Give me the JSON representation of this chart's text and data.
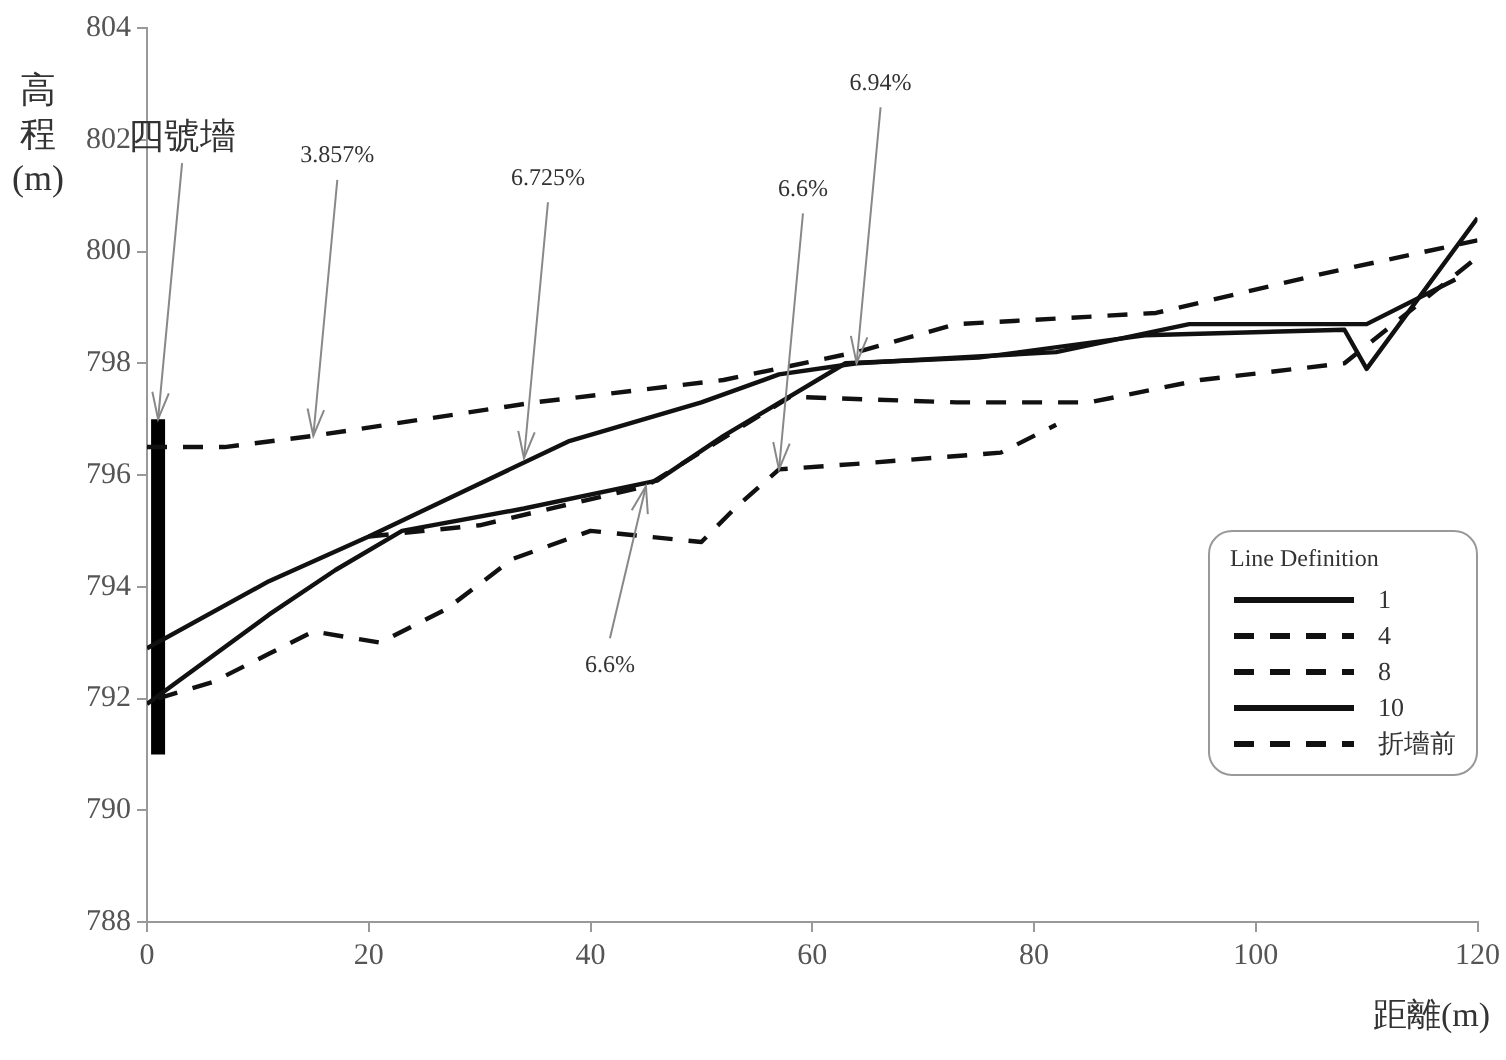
{
  "chart_data": {
    "type": "line",
    "xlabel": "距離(m)",
    "ylabel": "高程(m)",
    "legend_title": "Line Definition",
    "legend": "bottom right",
    "grid": false,
    "marker": "none",
    "xlim": [
      0,
      120
    ],
    "xticks": [
      0,
      20,
      40,
      60,
      80,
      100,
      120
    ],
    "ylim": [
      788,
      804
    ],
    "yticks": [
      788,
      790,
      792,
      794,
      796,
      798,
      800,
      802,
      804
    ],
    "series": [
      {
        "name": "1",
        "color": "#111111",
        "line_style": "solid",
        "x": [
          0,
          11,
          20,
          38,
          50,
          57,
          64,
          82,
          94,
          110,
          118
        ],
        "values": [
          792.9,
          794.1,
          794.9,
          796.6,
          797.3,
          797.8,
          798.0,
          798.2,
          798.7,
          798.7,
          799.5
        ]
      },
      {
        "name": "4",
        "color": "#111111",
        "line_style": "dashed",
        "x": [
          0,
          7,
          15,
          25,
          35,
          52,
          64,
          73,
          91,
          106,
          120
        ],
        "values": [
          796.5,
          796.5,
          796.7,
          797.0,
          797.3,
          797.7,
          798.2,
          798.7,
          798.9,
          799.6,
          800.2
        ]
      },
      {
        "name": "8",
        "color": "#111111",
        "line_style": "dashed",
        "x": [
          20,
          30,
          45,
          58,
          73,
          85,
          95,
          108,
          120
        ],
        "values": [
          794.9,
          795.1,
          795.8,
          797.4,
          797.3,
          797.3,
          797.7,
          798.0,
          799.9
        ]
      },
      {
        "name": "10",
        "color": "#111111",
        "line_style": "solid",
        "x": [
          0,
          11,
          17,
          23,
          34,
          46,
          52,
          63,
          75,
          90,
          108,
          110,
          120
        ],
        "values": [
          791.9,
          793.5,
          794.3,
          795.0,
          795.4,
          795.9,
          796.7,
          798.0,
          798.1,
          798.5,
          798.6,
          797.9,
          800.6
        ]
      },
      {
        "name": "折墻前",
        "color": "#111111",
        "line_style": "dashed",
        "x": [
          1,
          6,
          11,
          15,
          21,
          27,
          33,
          40,
          50,
          53,
          57,
          64,
          77,
          82
        ],
        "values": [
          792.0,
          792.3,
          792.8,
          793.2,
          793.0,
          793.6,
          794.5,
          795.0,
          794.8,
          795.4,
          796.1,
          796.2,
          796.4,
          796.9
        ]
      },
      {
        "color": "#000000",
        "line_style": "solid",
        "x": [
          1,
          1
        ],
        "values": [
          791,
          797
        ]
      }
    ],
    "annotations": [
      {
        "text": "四號墻",
        "x": 1,
        "y": 797
      },
      {
        "text": "3.857%",
        "x": 15,
        "y": 796.7
      },
      {
        "text": "6.725%",
        "x": 34,
        "y": 796.3
      },
      {
        "text": "6.94%",
        "x": 64,
        "y": 798.0
      },
      {
        "text": "6.6%",
        "x": 45,
        "y": 795.8
      },
      {
        "text": "6.6%",
        "x": 57,
        "y": 796.1
      }
    ]
  }
}
